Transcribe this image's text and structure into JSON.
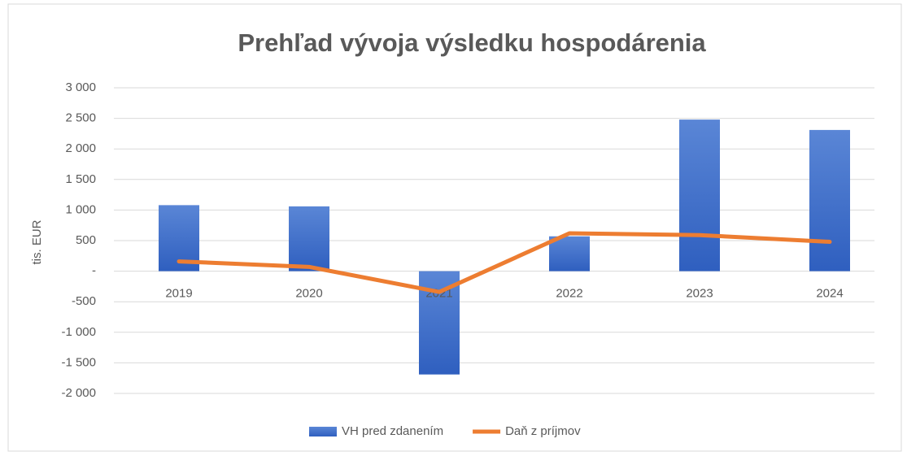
{
  "chart_data": {
    "type": "bar",
    "title": "Prehľad vývoja výsledku hospodárenia",
    "y_label": "tis. EUR",
    "categories": [
      "2019",
      "2020",
      "2021",
      "2022",
      "2023",
      "2024"
    ],
    "series": [
      {
        "name": "VH pred zdanením",
        "type": "bar",
        "color": "#4472c4",
        "values": [
          1080,
          1060,
          -1690,
          570,
          2480,
          2310
        ]
      },
      {
        "name": "Daň z príjmov",
        "type": "line",
        "color": "#ed7d31",
        "values": [
          160,
          70,
          -340,
          620,
          590,
          480
        ]
      }
    ],
    "ylim": [
      -2000,
      3000
    ],
    "yticks": [
      {
        "value": -2000,
        "label": "-2 000"
      },
      {
        "value": -1500,
        "label": "-1 500"
      },
      {
        "value": -1000,
        "label": "-1 000"
      },
      -500,
      {
        "value": 0,
        "label": "-"
      },
      500,
      {
        "value": 1000,
        "label": "1 000"
      },
      {
        "value": 1500,
        "label": "1 500"
      },
      {
        "value": 2000,
        "label": "2 000"
      },
      {
        "value": 2500,
        "label": "2 500"
      },
      {
        "value": 3000,
        "label": "3 000"
      }
    ],
    "grid": true,
    "legend": "bottom"
  }
}
